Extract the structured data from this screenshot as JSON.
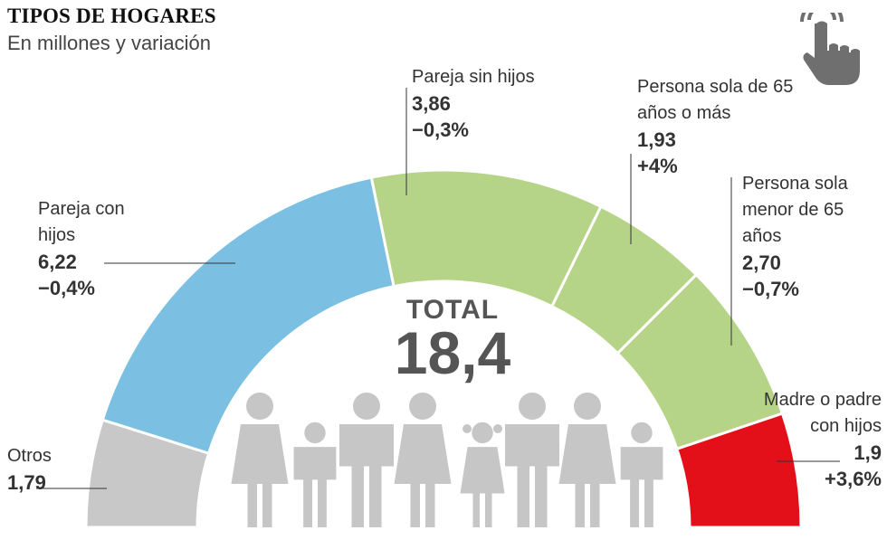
{
  "header": {
    "title": "TIPOS DE HOGARES",
    "subtitle": "En millones y variación"
  },
  "center": {
    "total_label": "TOTAL",
    "total_value": "18,4"
  },
  "icons": {
    "touch": "hand-pointer-icon",
    "people": "people-silhouettes-icon"
  },
  "chart_data": {
    "type": "pie",
    "shape": "semicircle-donut",
    "unit": "millones",
    "total": 18.4,
    "slices": [
      {
        "label": "Otros",
        "value": 1.79,
        "value_text": "1,79",
        "change_text": "",
        "color": "#c8c8c8"
      },
      {
        "label": "Pareja con hijos",
        "value": 6.22,
        "value_text": "6,22",
        "change_text": "−0,4%",
        "color": "#7bbfe2"
      },
      {
        "label": "Pareja sin hijos",
        "value": 3.86,
        "value_text": "3,86",
        "change_text": "−0,3%",
        "color": "#b6d488"
      },
      {
        "label": "Persona sola de 65 años o más",
        "value": 1.93,
        "value_text": "1,93",
        "change_text": "+4%",
        "color": "#b6d488"
      },
      {
        "label": "Persona sola menor de 65 años",
        "value": 2.7,
        "value_text": "2,70",
        "change_text": "−0,7%",
        "color": "#b6d488"
      },
      {
        "label": "Madre o padre con hijos",
        "value": 1.9,
        "value_text": "1,9",
        "change_text": "+3,6%",
        "color": "#e3101a"
      }
    ]
  }
}
